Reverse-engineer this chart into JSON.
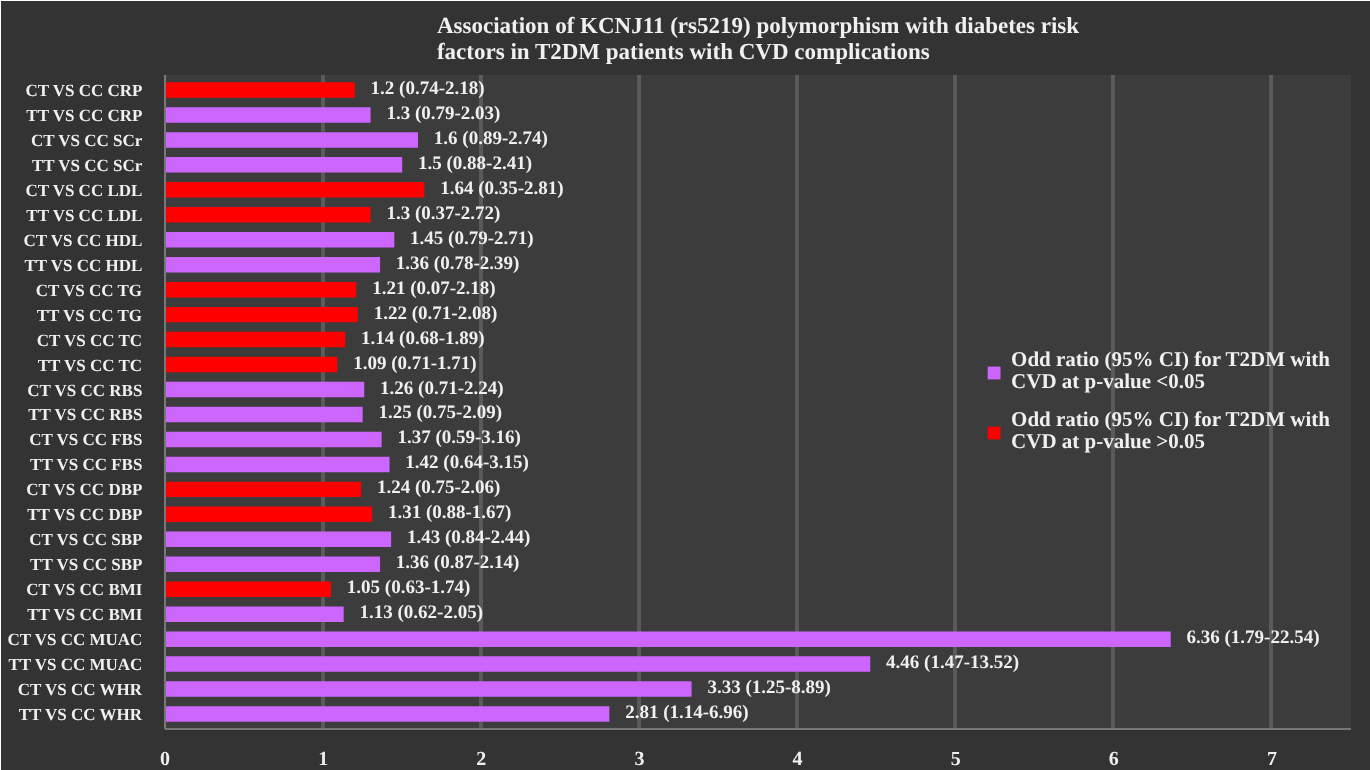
{
  "chart_data": {
    "type": "bar",
    "orientation": "horizontal",
    "title": "Association of KCNJ11 (rs5219) polymorphism with diabetes risk factors in T2DM patients with CVD complications",
    "categories": [
      "CT VS CC CRP",
      "TT VS CC CRP",
      "CT VS CC SCr",
      "TT VS CC SCr",
      "CT VS CC LDL",
      "TT VS CC LDL",
      "CT VS CC HDL",
      "TT VS CC HDL",
      "CT VS CC TG",
      "TT VS CC TG",
      "CT VS CC TC",
      "TT VS CC TC",
      "CT VS CC RBS",
      "TT VS CC RBS",
      "CT VS CC FBS",
      "TT VS CC FBS",
      "CT VS CC DBP",
      "TT VS CC DBP",
      "CT VS CC SBP",
      "TT VS CC SBP",
      "CT VS CC BMI",
      "TT VS CC BMI",
      "CT VS CC MUAC",
      "TT VS CC MUAC",
      "CT VS CC WHR",
      "TT VS CC WHR"
    ],
    "series": [
      {
        "name": "Odd ratio (95% CI) for T2DM with CVD at p-value <0.05",
        "color": "#cc66ff",
        "values": [
          null,
          1.3,
          1.6,
          1.5,
          null,
          null,
          1.45,
          1.36,
          null,
          null,
          null,
          null,
          1.26,
          1.25,
          1.37,
          1.42,
          null,
          null,
          1.43,
          1.36,
          null,
          1.13,
          6.36,
          4.46,
          3.33,
          2.81
        ],
        "value_labels": [
          null,
          "1.3 (0.79-2.03)",
          "1.6 (0.89-2.74)",
          "1.5 (0.88-2.41)",
          null,
          null,
          "1.45 (0.79-2.71)",
          "1.36  (0.78-2.39)",
          null,
          null,
          null,
          null,
          "1.26 (0.71-2.24)",
          "1.25 (0.75-2.09)",
          "1.37 (0.59-3.16)",
          "1.42 (0.64-3.15)",
          null,
          null,
          "1.43 (0.84-2.44)",
          "1.36 (0.87-2.14)",
          null,
          "1.13 (0.62-2.05)",
          "6.36 (1.79-22.54)",
          "4.46 (1.47-13.52)",
          "3.33 (1.25-8.89)",
          "2.81 (1.14-6.96)"
        ]
      },
      {
        "name": "Odd ratio (95% CI) for T2DM with CVD at p-value >0.05",
        "color": "#ff0000",
        "values": [
          1.2,
          null,
          null,
          null,
          1.64,
          1.3,
          null,
          null,
          1.21,
          1.22,
          1.14,
          1.09,
          null,
          null,
          null,
          null,
          1.24,
          1.31,
          null,
          null,
          1.05,
          null,
          null,
          null,
          null,
          null
        ],
        "value_labels": [
          "1.2 (0.74-2.18)",
          null,
          null,
          null,
          "1.64 (0.35-2.81)",
          "1.3 (0.37-2.72)",
          null,
          null,
          "1.21 (0.07-2.18)",
          "1.22 (0.71-2.08)",
          "1.14 (0.68-1.89)",
          "1.09 (0.71-1.71)",
          null,
          null,
          null,
          null,
          "1.24 (0.75-2.06)",
          "1.31 (0.88-1.67)",
          null,
          null,
          "1.05 (0.63-1.74)",
          null,
          null,
          null,
          null,
          null
        ]
      }
    ],
    "xlim": [
      0,
      7.5
    ],
    "xticks": [
      0,
      1,
      2,
      3,
      4,
      5,
      6,
      7
    ],
    "grid": "x",
    "legend": "right"
  }
}
